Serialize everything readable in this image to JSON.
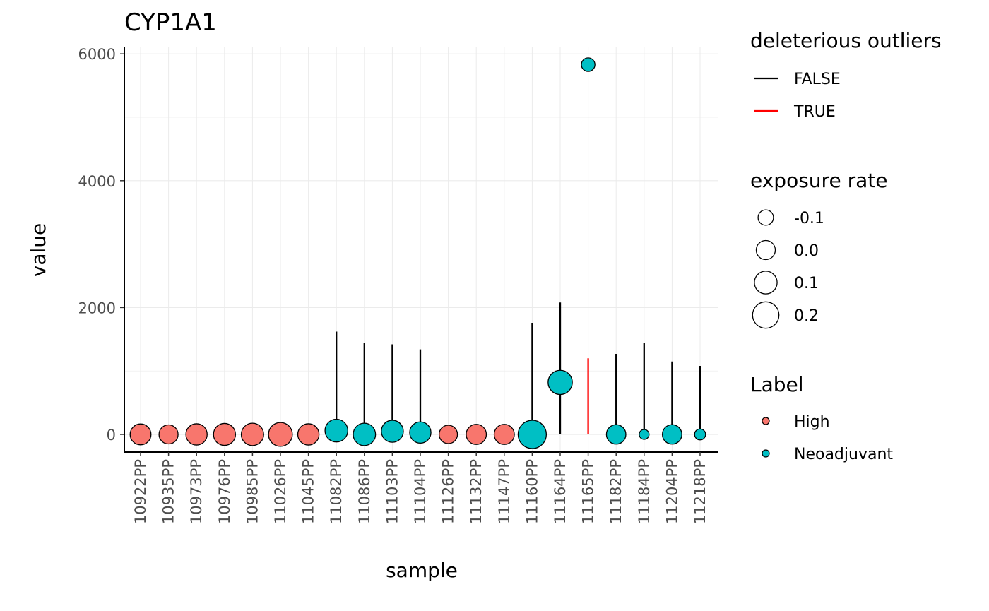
{
  "chart_data": {
    "type": "scatter",
    "title": "CYP1A1",
    "xlabel": "sample",
    "ylabel": "value",
    "ylim": [
      -280,
      6100
    ],
    "yticks": [
      0,
      2000,
      4000,
      6000
    ],
    "grid": true,
    "categories": [
      "10922PP",
      "10935PP",
      "10973PP",
      "10976PP",
      "10985PP",
      "11026PP",
      "11045PP",
      "11082PP",
      "11086PP",
      "11103PP",
      "11104PP",
      "11126PP",
      "11132PP",
      "11147PP",
      "11160PP",
      "11164PP",
      "11165PP",
      "11182PP",
      "11184PP",
      "11204PP",
      "11218PP"
    ],
    "points": [
      {
        "sample": "10922PP",
        "value": 0,
        "label": "High",
        "exposure_rate": 0.05
      },
      {
        "sample": "10935PP",
        "value": 0,
        "label": "High",
        "exposure_rate": 0.0
      },
      {
        "sample": "10973PP",
        "value": 0,
        "label": "High",
        "exposure_rate": 0.06
      },
      {
        "sample": "10976PP",
        "value": 0,
        "label": "High",
        "exposure_rate": 0.08
      },
      {
        "sample": "10985PP",
        "value": 0,
        "label": "High",
        "exposure_rate": 0.09
      },
      {
        "sample": "11026PP",
        "value": 0,
        "label": "High",
        "exposure_rate": 0.13
      },
      {
        "sample": "11045PP",
        "value": 0,
        "label": "High",
        "exposure_rate": 0.06
      },
      {
        "sample": "11082PP",
        "value": 60,
        "label": "Neoadjuvant",
        "exposure_rate": 0.1
      },
      {
        "sample": "11086PP",
        "value": 0,
        "label": "Neoadjuvant",
        "exposure_rate": 0.09
      },
      {
        "sample": "11103PP",
        "value": 50,
        "label": "Neoadjuvant",
        "exposure_rate": 0.08
      },
      {
        "sample": "11104PP",
        "value": 30,
        "label": "Neoadjuvant",
        "exposure_rate": 0.06
      },
      {
        "sample": "11126PP",
        "value": 0,
        "label": "High",
        "exposure_rate": -0.02
      },
      {
        "sample": "11132PP",
        "value": 0,
        "label": "High",
        "exposure_rate": 0.03
      },
      {
        "sample": "11147PP",
        "value": 0,
        "label": "High",
        "exposure_rate": 0.03
      },
      {
        "sample": "11160PP",
        "value": 0,
        "label": "Neoadjuvant",
        "exposure_rate": 0.25
      },
      {
        "sample": "11164PP",
        "value": 820,
        "label": "Neoadjuvant",
        "exposure_rate": 0.14
      },
      {
        "sample": "11165PP",
        "value": 5830,
        "label": "Neoadjuvant",
        "exposure_rate": -0.15
      },
      {
        "sample": "11182PP",
        "value": 0,
        "label": "Neoadjuvant",
        "exposure_rate": 0.01
      },
      {
        "sample": "11184PP",
        "value": 0,
        "label": "Neoadjuvant",
        "exposure_rate": -0.25
      },
      {
        "sample": "11204PP",
        "value": 0,
        "label": "Neoadjuvant",
        "exposure_rate": 0.01
      },
      {
        "sample": "11218PP",
        "value": 0,
        "label": "Neoadjuvant",
        "exposure_rate": -0.22
      }
    ],
    "segments": [
      {
        "sample": "11082PP",
        "y0": 0,
        "y1": 1620,
        "deleterious_outlier": false
      },
      {
        "sample": "11086PP",
        "y0": 0,
        "y1": 1440,
        "deleterious_outlier": false
      },
      {
        "sample": "11103PP",
        "y0": 0,
        "y1": 1420,
        "deleterious_outlier": false
      },
      {
        "sample": "11104PP",
        "y0": 0,
        "y1": 1340,
        "deleterious_outlier": false
      },
      {
        "sample": "11160PP",
        "y0": 0,
        "y1": 1760,
        "deleterious_outlier": false
      },
      {
        "sample": "11164PP",
        "y0": 0,
        "y1": 2080,
        "deleterious_outlier": false
      },
      {
        "sample": "11165PP",
        "y0": 0,
        "y1": 1200,
        "deleterious_outlier": true
      },
      {
        "sample": "11182PP",
        "y0": 0,
        "y1": 1270,
        "deleterious_outlier": false
      },
      {
        "sample": "11184PP",
        "y0": 0,
        "y1": 1440,
        "deleterious_outlier": false
      },
      {
        "sample": "11204PP",
        "y0": 0,
        "y1": 1150,
        "deleterious_outlier": false
      },
      {
        "sample": "11218PP",
        "y0": 0,
        "y1": 1080,
        "deleterious_outlier": false
      }
    ],
    "legend_position": "right",
    "legends": {
      "outliers": {
        "title": "deleterious outliers",
        "items": [
          {
            "label": "FALSE",
            "color": "#000000"
          },
          {
            "label": "TRUE",
            "color": "#ff0000"
          }
        ]
      },
      "size": {
        "title": "exposure rate",
        "items": [
          {
            "label": "-0.1",
            "value": -0.1
          },
          {
            "label": "0.0",
            "value": 0.0
          },
          {
            "label": "0.1",
            "value": 0.1
          },
          {
            "label": "0.2",
            "value": 0.2
          }
        ]
      },
      "label": {
        "title": "Label",
        "items": [
          {
            "label": "High",
            "color": "#F8766D"
          },
          {
            "label": "Neoadjuvant",
            "color": "#00BFC4"
          }
        ]
      }
    },
    "colors": {
      "High": "#F8766D",
      "Neoadjuvant": "#00BFC4",
      "outlier_true": "#ff0000",
      "outlier_false": "#000000"
    }
  }
}
